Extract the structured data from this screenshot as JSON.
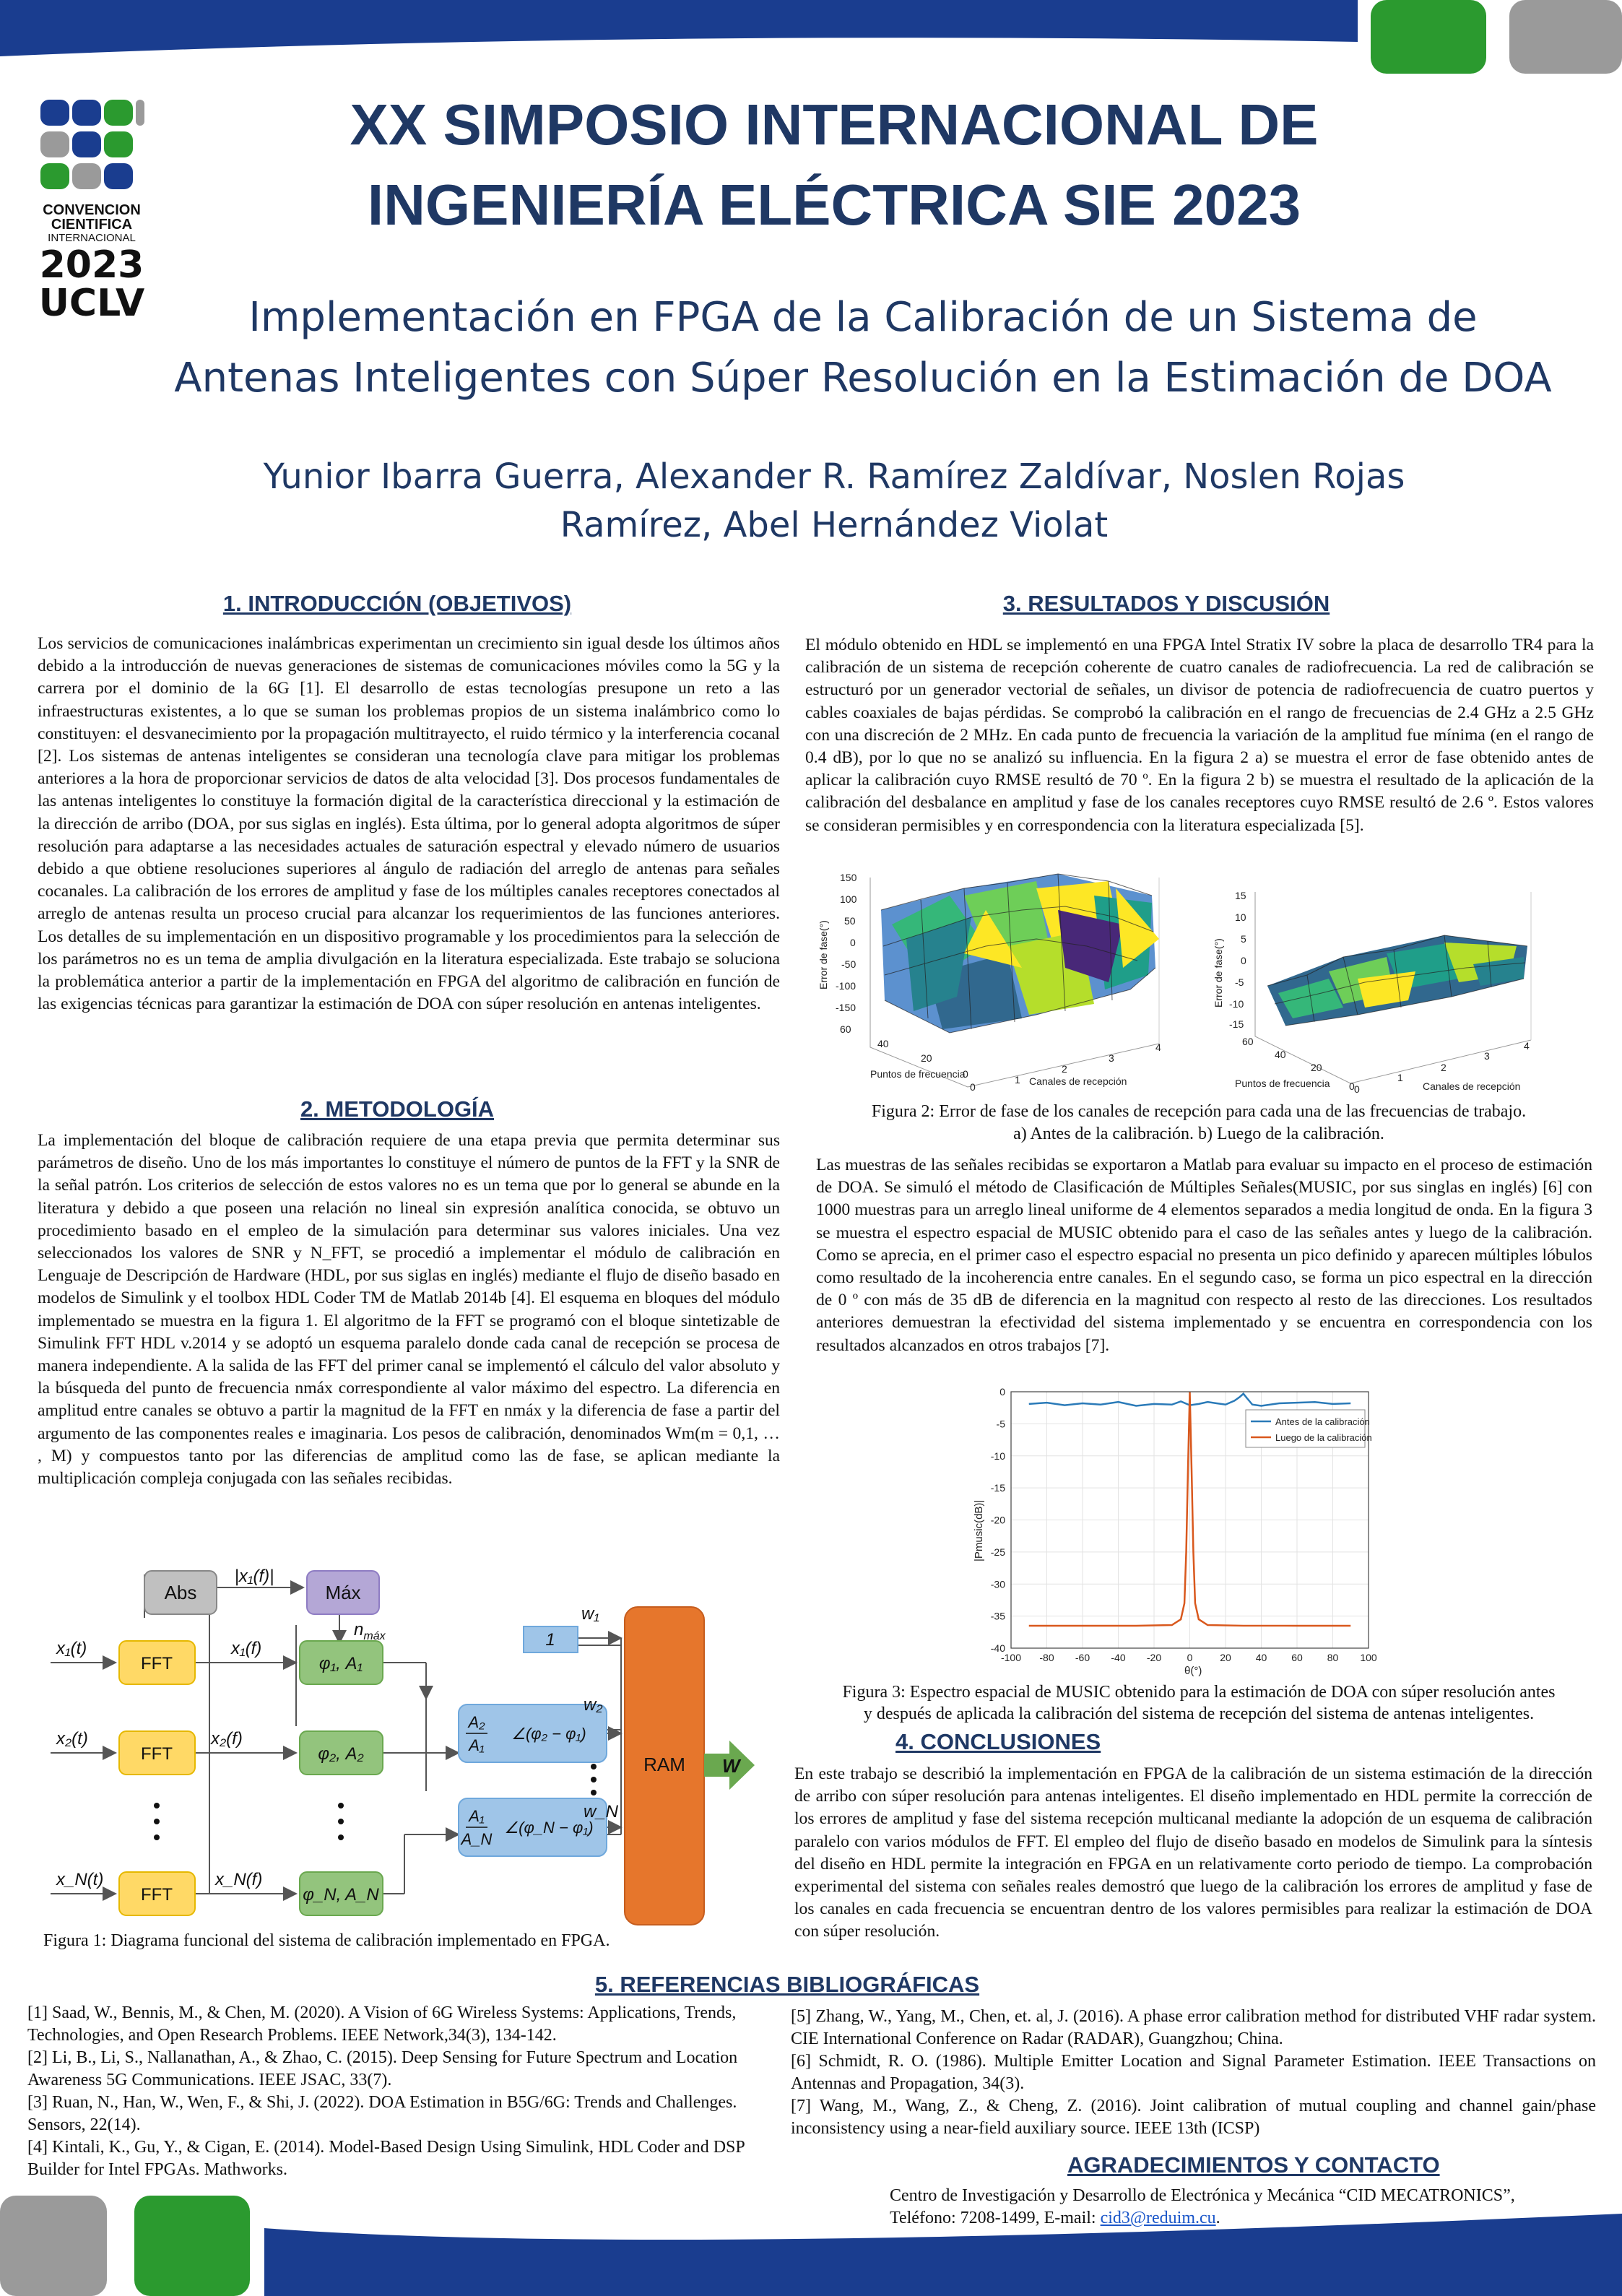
{
  "header": {
    "logo": {
      "line1": "CONVENCION",
      "line2": "CIENTIFICA",
      "line3": "INTERNACIONAL",
      "year": "2023",
      "org": "UCLV"
    },
    "title_line1": "XX SIMPOSIO INTERNACIONAL DE",
    "title_line2": "INGENIERÍA ELÉCTRICA SIE 2023",
    "subtitle_line1": "Implementación en FPGA de la Calibración de un Sistema de",
    "subtitle_line2": "Antenas Inteligentes con Súper Resolución en la Estimación de DOA",
    "authors_line1": "Yunior Ibarra Guerra, Alexander R. Ramírez Zaldívar, Noslen Rojas",
    "authors_line2": "Ramírez, Abel Hernández Violat",
    "colors": {
      "navy": "#1f3864",
      "blue": "#1a3d8f",
      "green": "#2b9a2f",
      "gray": "#9a9a9a"
    }
  },
  "sections": {
    "intro": {
      "heading": "1. INTRODUCCIÓN (OBJETIVOS)",
      "text": "Los servicios de comunicaciones inalámbricas experimentan un crecimiento sin igual desde los últimos años debido a la introducción de nuevas generaciones de sistemas de comunicaciones móviles como la 5G y la carrera por el dominio de la 6G [1]. El desarrollo de estas tecnologías presupone un reto a las infraestructuras existentes, a lo que se suman los problemas propios de un sistema inalámbrico como lo constituyen: el desvanecimiento por la propagación multitrayecto, el ruido térmico y la interferencia cocanal [2]. Los sistemas de antenas inteligentes se consideran una tecnología clave para mitigar los problemas anteriores a la hora de proporcionar servicios de datos de alta velocidad [3]. Dos procesos fundamentales de las antenas inteligentes lo constituye la formación digital de la característica direccional y la estimación de la dirección de arribo (DOA, por sus siglas en inglés). Esta última, por lo general adopta algoritmos de súper resolución para adaptarse a las necesidades actuales de saturación espectral y elevado número de usuarios debido a que obtiene resoluciones superiores al ángulo de radiación del arreglo de antenas para señales cocanales. La calibración de los errores de amplitud y fase de los múltiples canales receptores conectados al arreglo de antenas resulta un proceso crucial para alcanzar los requerimientos de las funciones anteriores. Los detalles de su implementación en un dispositivo programable y los procedimientos para la selección de los parámetros no es un tema de amplia divulgación en la literatura especializada. Este trabajo se soluciona la problemática anterior a partir de la implementación en FPGA del algoritmo de calibración en función de las exigencias técnicas para garantizar la estimación de DOA con súper resolución en antenas inteligentes."
    },
    "method": {
      "heading": "2. METODOLOGÍA",
      "text": "La implementación del bloque de calibración requiere de una etapa previa que permita determinar sus parámetros de diseño. Uno de los más importantes lo constituye el número de puntos de la FFT y la SNR de la señal patrón. Los criterios de selección de estos valores no es un tema que por lo general se abunde en la literatura y debido a que poseen una relación no lineal sin expresión analítica conocida, se obtuvo un procedimiento basado en el empleo de la simulación para determinar sus valores iniciales. Una vez seleccionados los valores de SNR y N_FFT, se procedió a implementar el módulo de calibración en Lenguaje de Descripción de Hardware (HDL, por sus siglas en inglés) mediante el flujo de diseño basado en modelos de Simulink y el toolbox HDL Coder TM de Matlab 2014b [4]. El esquema en bloques del módulo implementado se muestra en la figura 1. El algoritmo de la FFT se programó con el bloque sintetizable de Simulink FFT HDL v.2014 y se adoptó un esquema paralelo donde cada canal de recepción se procesa de manera independiente. A la salida de las FFT del primer canal se implementó el cálculo del valor absoluto y la búsqueda del punto de frecuencia nmáx correspondiente al valor máximo del espectro. La diferencia en amplitud entre canales se obtuvo a partir la magnitud de la FFT en nmáx y la diferencia de fase a partir del argumento de las componentes reales e imaginaria. Los pesos de calibración, denominados Wm(m = 0,1, … , M) y compuestos tanto por las diferencias de amplitud como las de fase, se aplican mediante la multiplicación compleja conjugada con las señales recibidas."
    },
    "results": {
      "heading": "3. RESULTADOS Y DISCUSIÓN",
      "text1": "El módulo obtenido en HDL se implementó en una FPGA Intel Stratix IV sobre la placa de desarrollo TR4 para la calibración de un sistema de recepción coherente de cuatro canales de radiofrecuencia. La red de calibración se estructuró por un generador vectorial de señales, un divisor de potencia de radiofrecuencia de cuatro puertos y cables coaxiales de bajas pérdidas. Se comprobó la calibración en el rango de frecuencias de 2.4 GHz a 2.5 GHz con una discreción de 2 MHz. En cada punto de frecuencia la variación de la amplitud fue mínima (en el rango de 0.4 dB), por lo que no se analizó su influencia. En la figura 2 a) se muestra el error de fase obtenido antes de aplicar la calibración cuyo RMSE resultó de 70 º. En la figura 2 b) se muestra el resultado de la aplicación de la calibración del desbalance en amplitud y fase de los canales receptores cuyo RMSE resultó de 2.6 º. Estos valores se consideran permisibles y en correspondencia con la literatura especializada [5].",
      "text2": "Las muestras de las señales recibidas se exportaron a Matlab para evaluar su impacto en el proceso de estimación de DOA. Se simuló el método de Clasificación de Múltiples Señales(MUSIC, por sus singlas en inglés) [6] con 1000 muestras para un arreglo lineal uniforme de 4 elementos separados a media longitud de onda. En la figura 3 se muestra el espectro espacial de MUSIC obtenido para el caso de las señales antes y luego de la calibración. Como se aprecia, en el primer caso el espectro espacial no presenta un pico definido y aparecen múltiples lóbulos como resultado de la incoherencia entre canales. En el segundo caso, se forma un pico espectral en la dirección de 0 º con más de 35 dB de diferencia en la magnitud con respecto al resto de las direcciones. Los resultados anteriores demuestran la efectividad del sistema implementado y se encuentra en correspondencia con los resultados alcanzados en otros trabajos  [7]."
    },
    "conclusions": {
      "heading": "4. CONCLUSIONES",
      "text": "En este trabajo se describió la implementación en FPGA de la calibración de un sistema estimación de la dirección de arribo con súper resolución para antenas inteligentes. El diseño implementado en HDL permite la corrección de los errores de amplitud y fase del sistema recepción multicanal mediante la adopción de un esquema de calibración paralelo con varios módulos de FFT. El empleo del flujo de diseño basado en modelos de Simulink para la síntesis del diseño en HDL permite la integración en FPGA en un relativamente corto periodo de tiempo. La comprobación experimental del sistema con señales reales demostró que luego de la calibración los errores de amplitud y fase de los canales en cada frecuencia se encuentran dentro de los valores permisibles para realizar la estimación de DOA con súper resolución."
    },
    "references": {
      "heading": "5. REFERENCIAS BIBLIOGRÁFICAS",
      "left": [
        "[1] Saad, W., Bennis, M., & Chen, M. (2020). A Vision of 6G Wireless Systems: Applications, Trends, Technologies, and Open Research Problems. IEEE Network,34(3), 134-142.",
        "[2] Li, B., Li, S., Nallanathan, A., & Zhao, C. (2015). Deep Sensing for Future Spectrum and Location Awareness 5G Communications. IEEE JSAC, 33(7).",
        "[3] Ruan, N., Han, W., Wen, F., & Shi, J. (2022). DOA Estimation in B5G/6G: Trends and Challenges. Sensors, 22(14).",
        "[4] Kintali, K., Gu, Y., & Cigan, E. (2014). Model-Based Design Using Simulink, HDL Coder and DSP Builder for Intel FPGAs. Mathworks."
      ],
      "right": [
        "[5] Zhang, W., Yang, M., Chen, et. al, J. (2016). A phase error calibration method for distributed VHF radar system. CIE International Conference on Radar (RADAR), Guangzhou; China.",
        "[6] Schmidt, R. O. (1986). Multiple Emitter Location and Signal Parameter Estimation. IEEE Transactions on Antennas and Propagation, 34(3).",
        "[7] Wang, M., Wang, Z., & Cheng, Z. (2016). Joint calibration of mutual coupling and channel gain/phase inconsistency using a near-field auxiliary source. IEEE 13th (ICSP)"
      ]
    },
    "contact": {
      "heading": "AGRADECIMIENTOS Y CONTACTO",
      "line1": "Centro de Investigación y Desarrollo de Electrónica y Mecánica “CID MECATRONICS”,",
      "line2_prefix": "Teléfono: 7208-1499,  E-mail: ",
      "email": "cid3@reduim.cu",
      "line2_suffix": "."
    }
  },
  "figure1": {
    "caption": "Figura 1: Diagrama funcional del sistema de calibración implementado en FPGA.",
    "abs": "Abs",
    "max": "Máx",
    "mag_label": "|x₁(f)|",
    "nmax": "n",
    "nmax_sub": "máx",
    "inputs": [
      "x₁(t)",
      "x₂(t)",
      "x_N(t)"
    ],
    "fft": "FFT",
    "freq": [
      "x₁(f)",
      "x₂(f)",
      "x_N(f)"
    ],
    "phi": [
      "φ₁, A₁",
      "φ₂, A₂",
      "φ_N, A_N"
    ],
    "ratio2_top": "A₂",
    "ratio2_bot": "A₁",
    "one": "1",
    "weights": [
      "w₁",
      "w₂",
      "w_N"
    ],
    "ram": "RAM",
    "out": "W",
    "colors": {
      "fft": "#ffd966",
      "phi": "#93c47d",
      "ratio": "#9fc5e8",
      "ram": "#e6762c",
      "abs": "#c0c0c0",
      "max": "#b4a7d6",
      "out": "#6aa84f"
    }
  },
  "figure2": {
    "caption_line1": "Figura 2: Error de fase de los canales de recepción para cada una de las frecuencias de trabajo.",
    "caption_line2": "a) Antes de la calibración. b) Luego de la calibración.",
    "a": {
      "zlabel": "Error de fase(°)",
      "xlabel": "Puntos de frecuencia",
      "ylabel": "Canales de recepción",
      "zticks": [
        "150",
        "100",
        "50",
        "0",
        "-50",
        "-100",
        "-150"
      ],
      "xticks": [
        "60",
        "40",
        "20",
        "0"
      ],
      "yticks": [
        "0",
        "1",
        "2",
        "3",
        "4"
      ]
    },
    "b": {
      "zlabel": "Error de fase(°)",
      "xlabel": "Puntos de frecuencia",
      "ylabel": "Canales de recepción",
      "zticks": [
        "15",
        "10",
        "5",
        "0",
        "-5",
        "-10",
        "-15"
      ],
      "xticks": [
        "60",
        "40",
        "20",
        "0"
      ],
      "yticks": [
        "0",
        "1",
        "2",
        "3",
        "4"
      ]
    }
  },
  "figure3": {
    "caption_line1": "Figura 3: Espectro espacial de MUSIC obtenido para la estimación de DOA con súper resolución antes",
    "caption_line2": "y después de aplicada la calibración del sistema de recepción del sistema de antenas inteligentes.",
    "ylabel": "|Pmusic(dB)|",
    "xlabel": "θ(°)"
  },
  "chart_data": [
    {
      "type": "line",
      "title": "",
      "xlabel": "θ(°)",
      "ylabel": "|Pmusic(dB)|",
      "xlim": [
        -100,
        100
      ],
      "ylim": [
        -40,
        0
      ],
      "xticks": [
        -100,
        -80,
        -60,
        -40,
        -20,
        0,
        20,
        40,
        60,
        80,
        100
      ],
      "yticks": [
        0,
        -5,
        -10,
        -15,
        -20,
        -25,
        -30,
        -35,
        -40
      ],
      "grid": true,
      "legend_position": "top-right",
      "series": [
        {
          "name": "Antes de la calibración",
          "color": "#2a7ab8",
          "x": [
            -90,
            -80,
            -70,
            -60,
            -50,
            -40,
            -30,
            -20,
            -10,
            -5,
            0,
            5,
            10,
            15,
            20,
            25,
            28,
            30,
            32,
            35,
            40,
            50,
            60,
            70,
            80,
            90
          ],
          "y": [
            -1.9,
            -1.7,
            -2.1,
            -1.8,
            -2.0,
            -1.6,
            -2.2,
            -1.9,
            -2.0,
            -1.5,
            -2.1,
            -1.9,
            -1.6,
            -1.8,
            -2.0,
            -1.4,
            -0.8,
            -0.3,
            -1.0,
            -2.0,
            -2.2,
            -1.8,
            -1.7,
            -1.6,
            -1.9,
            -1.8
          ]
        },
        {
          "name": "Luego de la calibración",
          "color": "#d9581d",
          "x": [
            -90,
            -60,
            -30,
            -10,
            -5,
            -3,
            -2,
            -1,
            0,
            1,
            2,
            3,
            5,
            10,
            30,
            60,
            90
          ],
          "y": [
            -36.5,
            -36.5,
            -36.5,
            -36.4,
            -35.5,
            -33,
            -25,
            -12,
            0,
            -12,
            -25,
            -33,
            -35.5,
            -36.4,
            -36.5,
            -36.5,
            -36.5
          ]
        }
      ]
    }
  ]
}
